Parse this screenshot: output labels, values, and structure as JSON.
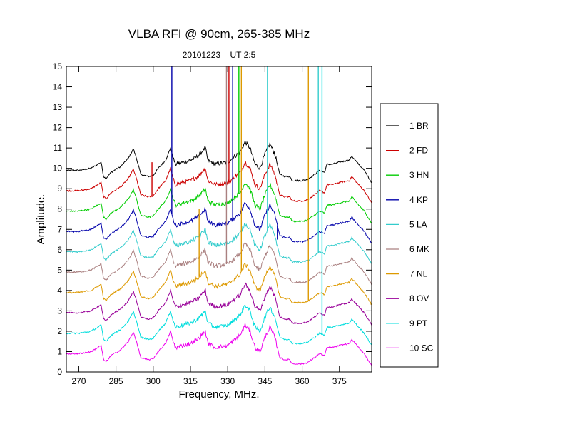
{
  "chart_data": {
    "type": "line",
    "title": "VLBA RFI @ 90cm, 265-385 MHz",
    "subtitle": "20101223    UT 2:5",
    "xlabel": "Frequency, MHz.",
    "ylabel": "Amplitude.",
    "xlim": [
      265,
      388
    ],
    "ylim": [
      0,
      15
    ],
    "x_ticks": [
      270,
      285,
      300,
      315,
      330,
      345,
      360,
      375
    ],
    "y_ticks": [
      0,
      1,
      2,
      3,
      4,
      5,
      6,
      7,
      8,
      9,
      10,
      11,
      12,
      13,
      14,
      15
    ],
    "grid": false,
    "legend_position": "right",
    "series": [
      {
        "name": "1 BR",
        "color": "#000000",
        "offset": 9.0
      },
      {
        "name": "2 FD",
        "color": "#cc0000",
        "offset": 8.0
      },
      {
        "name": "3 HN",
        "color": "#00cc00",
        "offset": 7.0
      },
      {
        "name": "4 KP",
        "color": "#0000aa",
        "offset": 6.0
      },
      {
        "name": "5 LA",
        "color": "#33cccc",
        "offset": 5.0
      },
      {
        "name": "6 MK",
        "color": "#aa8080",
        "offset": 4.0
      },
      {
        "name": "7 NL",
        "color": "#dd9900",
        "offset": 3.0
      },
      {
        "name": "8 OV",
        "color": "#990099",
        "offset": 2.0
      },
      {
        "name": "9 PT",
        "color": "#00dddd",
        "offset": 1.0
      },
      {
        "name": "10 SC",
        "color": "#ee00ee",
        "offset": 0.0
      }
    ],
    "baseline_shape": [
      [
        265,
        0.9
      ],
      [
        270,
        0.9
      ],
      [
        275,
        1.0
      ],
      [
        279,
        1.3
      ],
      [
        280,
        0.6
      ],
      [
        281,
        0.5
      ],
      [
        283,
        0.8
      ],
      [
        287,
        1.1
      ],
      [
        290,
        1.5
      ],
      [
        292,
        1.95
      ],
      [
        293,
        1.6
      ],
      [
        295,
        0.7
      ],
      [
        298,
        0.6
      ],
      [
        300,
        0.65
      ],
      [
        302,
        1.0
      ],
      [
        305,
        1.4
      ],
      [
        307,
        2.0
      ],
      [
        308,
        1.5
      ],
      [
        309,
        1.2
      ],
      [
        312,
        1.3
      ],
      [
        315,
        1.4
      ],
      [
        318,
        1.6
      ],
      [
        321,
        2.0
      ],
      [
        322,
        1.4
      ],
      [
        325,
        1.2
      ],
      [
        330,
        1.3
      ],
      [
        335,
        1.8
      ],
      [
        337,
        2.3
      ],
      [
        339,
        2.0
      ],
      [
        341,
        1.2
      ],
      [
        343,
        1.0
      ],
      [
        345,
        1.7
      ],
      [
        347,
        2.2
      ],
      [
        349,
        1.7
      ],
      [
        351,
        0.7
      ],
      [
        353,
        0.6
      ],
      [
        355,
        0.6
      ],
      [
        356,
        0.4
      ],
      [
        358,
        0.4
      ],
      [
        360,
        0.4
      ],
      [
        362,
        0.45
      ],
      [
        365,
        0.7
      ],
      [
        367,
        0.9
      ],
      [
        369,
        0.8
      ],
      [
        370,
        1.2
      ],
      [
        372,
        1.2
      ],
      [
        375,
        1.3
      ],
      [
        379,
        1.4
      ],
      [
        380,
        1.6
      ],
      [
        382,
        1.3
      ],
      [
        385,
        0.9
      ],
      [
        388,
        0.3
      ]
    ],
    "spikes": [
      {
        "series": "4 KP",
        "x": 307.5,
        "top": 15
      },
      {
        "series": "4 KP",
        "x": 332.0,
        "top": 15
      },
      {
        "series": "2 FD",
        "x": 330.5,
        "top": 15
      },
      {
        "series": "6 MK",
        "x": 329.5,
        "top": 15
      },
      {
        "series": "7 NL",
        "x": 335.5,
        "top": 15
      },
      {
        "series": "3 HN",
        "x": 334.5,
        "top": 15
      },
      {
        "series": "5 LA",
        "x": 346.0,
        "top": 15
      },
      {
        "series": "7 NL",
        "x": 362.5,
        "top": 15
      },
      {
        "series": "9 PT",
        "x": 368.0,
        "top": 15
      },
      {
        "series": "5 LA",
        "x": 366.5,
        "top": 15
      },
      {
        "series": "2 FD",
        "x": 299.5,
        "top": 10.3
      },
      {
        "series": "7 NL",
        "x": 318.5,
        "top": 8.0
      },
      {
        "series": "4 KP",
        "x": 350.0,
        "top": 6.5
      }
    ]
  }
}
